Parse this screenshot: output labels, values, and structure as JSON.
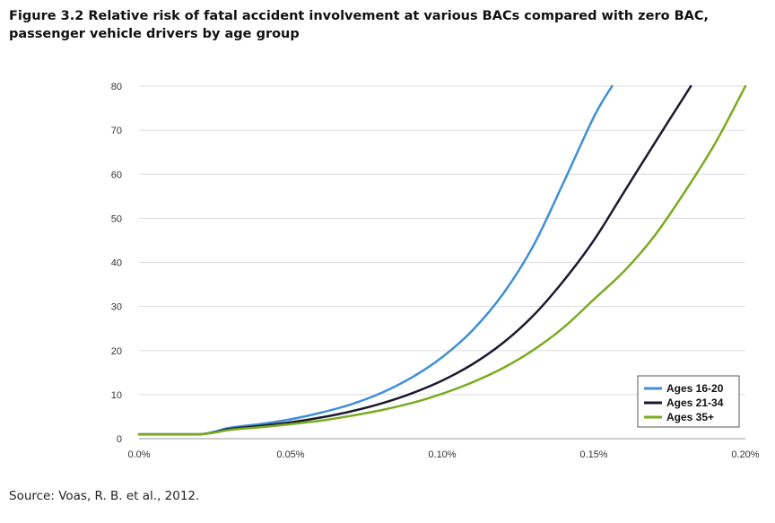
{
  "figure": {
    "title": "Figure 3.2 Relative risk of fatal accident involvement at various BACs compared with zero BAC, passenger vehicle drivers by age group",
    "source": "Source: Voas, R. B. et al., 2012."
  },
  "chart_data": {
    "type": "line",
    "title": "",
    "xlabel": "",
    "ylabel": "",
    "xlim": [
      0,
      0.2
    ],
    "ylim": [
      0,
      80
    ],
    "x_ticks": [
      {
        "value": 0.0,
        "label": "0.0%"
      },
      {
        "value": 0.05,
        "label": "0.05%"
      },
      {
        "value": 0.1,
        "label": "0.10%"
      },
      {
        "value": 0.15,
        "label": "0.15%"
      },
      {
        "value": 0.2,
        "label": "0.20%"
      }
    ],
    "y_ticks": [
      0,
      10,
      20,
      30,
      40,
      50,
      60,
      70,
      80
    ],
    "grid": "horizontal",
    "legend_position": "bottom-right",
    "series": [
      {
        "name": "Ages 16-20",
        "color": "#3f8fd6",
        "x": [
          0,
          0.02,
          0.03,
          0.04,
          0.05,
          0.06,
          0.07,
          0.08,
          0.09,
          0.1,
          0.11,
          0.12,
          0.13,
          0.14,
          0.15,
          0.156
        ],
        "y": [
          1,
          1,
          2.5,
          3.3,
          4.4,
          5.9,
          7.8,
          10.4,
          13.9,
          18.5,
          24.6,
          32.8,
          43.7,
          58.1,
          73,
          80
        ]
      },
      {
        "name": "Ages 21-34",
        "color": "#1a1a2e",
        "x": [
          0,
          0.02,
          0.03,
          0.04,
          0.05,
          0.06,
          0.07,
          0.08,
          0.09,
          0.1,
          0.11,
          0.12,
          0.13,
          0.14,
          0.15,
          0.16,
          0.17,
          0.182
        ],
        "y": [
          1,
          1,
          2.2,
          2.9,
          3.7,
          4.8,
          6.2,
          8,
          10.3,
          13.2,
          16.9,
          21.7,
          27.9,
          35.8,
          45,
          56,
          67,
          80
        ]
      },
      {
        "name": "Ages 35+",
        "color": "#7aab1f",
        "x": [
          0,
          0.02,
          0.03,
          0.04,
          0.05,
          0.06,
          0.07,
          0.08,
          0.09,
          0.1,
          0.11,
          0.12,
          0.13,
          0.14,
          0.15,
          0.16,
          0.17,
          0.18,
          0.19,
          0.2
        ],
        "y": [
          1,
          1,
          2,
          2.6,
          3.3,
          4.1,
          5.2,
          6.5,
          8.1,
          10.2,
          12.8,
          16,
          20.1,
          25.2,
          31.6,
          38,
          46,
          56,
          67,
          80
        ]
      }
    ]
  }
}
